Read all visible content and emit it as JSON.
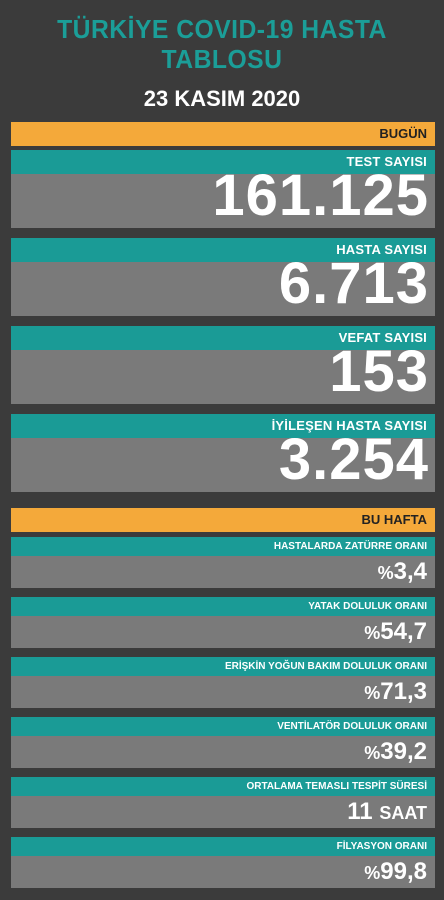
{
  "header": {
    "title_line1": "TÜRKİYE COVID-19 HASTA",
    "title_line2": "TABLOSU",
    "date": "23 KASIM 2020"
  },
  "today": {
    "section_label": "BUGÜN",
    "cards": [
      {
        "label": "TEST SAYISI",
        "value": "161.125"
      },
      {
        "label": "HASTA SAYISI",
        "value": "6.713"
      },
      {
        "label": "VEFAT SAYISI",
        "value": "153"
      },
      {
        "label": "İYİLEŞEN HASTA SAYISI",
        "value": "3.254"
      }
    ]
  },
  "week": {
    "section_label": "BU HAFTA",
    "cards": [
      {
        "label": "HASTALARDA ZATÜRRE ORANI",
        "prefix": "%",
        "value": "3,4",
        "unit": ""
      },
      {
        "label": "YATAK DOLULUK ORANI",
        "prefix": "%",
        "value": "54,7",
        "unit": ""
      },
      {
        "label": "ERİŞKİN YOĞUN BAKIM DOLULUK ORANI",
        "prefix": "%",
        "value": "71,3",
        "unit": ""
      },
      {
        "label": "VENTİLATÖR DOLULUK ORANI",
        "prefix": "%",
        "value": "39,2",
        "unit": ""
      },
      {
        "label": "ORTALAMA TEMASLI TESPİT SÜRESİ",
        "prefix": "",
        "value": "11",
        "unit": "SAAT"
      },
      {
        "label": "FİLYASYON ORANI",
        "prefix": "%",
        "value": "99,8",
        "unit": ""
      }
    ]
  },
  "colors": {
    "teal": "#1a9b96",
    "orange": "#f4a93a",
    "gray": "#7a7a7a",
    "background": "#3b3b3b"
  }
}
